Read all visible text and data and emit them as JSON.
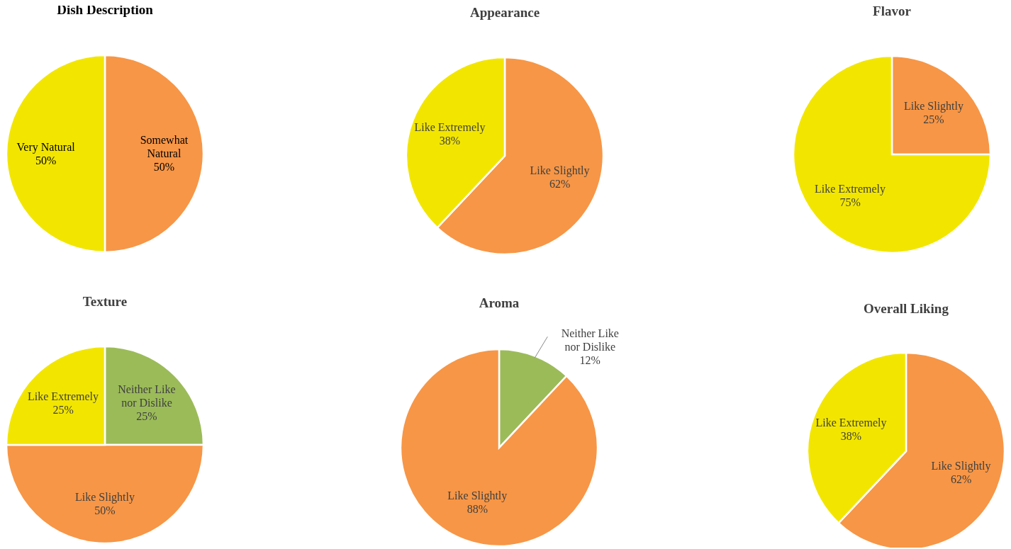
{
  "chart_data": [
    {
      "type": "pie",
      "title": "Dish Description",
      "categories": [
        "Somewhat Natural",
        "Very Natural"
      ],
      "values": [
        50,
        50
      ],
      "colors": [
        "#f79646",
        "#f2e600"
      ],
      "value_labels": [
        "50%",
        "50%"
      ]
    },
    {
      "type": "pie",
      "title": "Appearance",
      "categories": [
        "Like Slightly",
        "Like Extremely"
      ],
      "values": [
        62,
        38
      ],
      "colors": [
        "#f79646",
        "#f2e600"
      ],
      "value_labels": [
        "62%",
        "38%"
      ]
    },
    {
      "type": "pie",
      "title": "Flavor",
      "categories": [
        "Like Slightly",
        "Like Extremely"
      ],
      "values": [
        25,
        75
      ],
      "colors": [
        "#f79646",
        "#f2e600"
      ],
      "value_labels": [
        "25%",
        "75%"
      ]
    },
    {
      "type": "pie",
      "title": "Texture",
      "categories": [
        "Neither Like nor Dislike",
        "Like Slightly",
        "Like Extremely"
      ],
      "values": [
        25,
        50,
        25
      ],
      "colors": [
        "#9bbb59",
        "#f79646",
        "#f2e600"
      ],
      "value_labels": [
        "25%",
        "50%",
        "25%"
      ]
    },
    {
      "type": "pie",
      "title": "Aroma",
      "categories": [
        "Neither Like nor Dislike",
        "Like Slightly"
      ],
      "values": [
        12,
        88
      ],
      "colors": [
        "#9bbb59",
        "#f79646"
      ],
      "value_labels": [
        "12%",
        "88%"
      ]
    },
    {
      "type": "pie",
      "title": "Overall Liking",
      "categories": [
        "Like Slightly",
        "Like Extremely"
      ],
      "values": [
        62,
        38
      ],
      "colors": [
        "#f79646",
        "#f2e600"
      ],
      "value_labels": [
        "62%",
        "38%"
      ]
    }
  ]
}
